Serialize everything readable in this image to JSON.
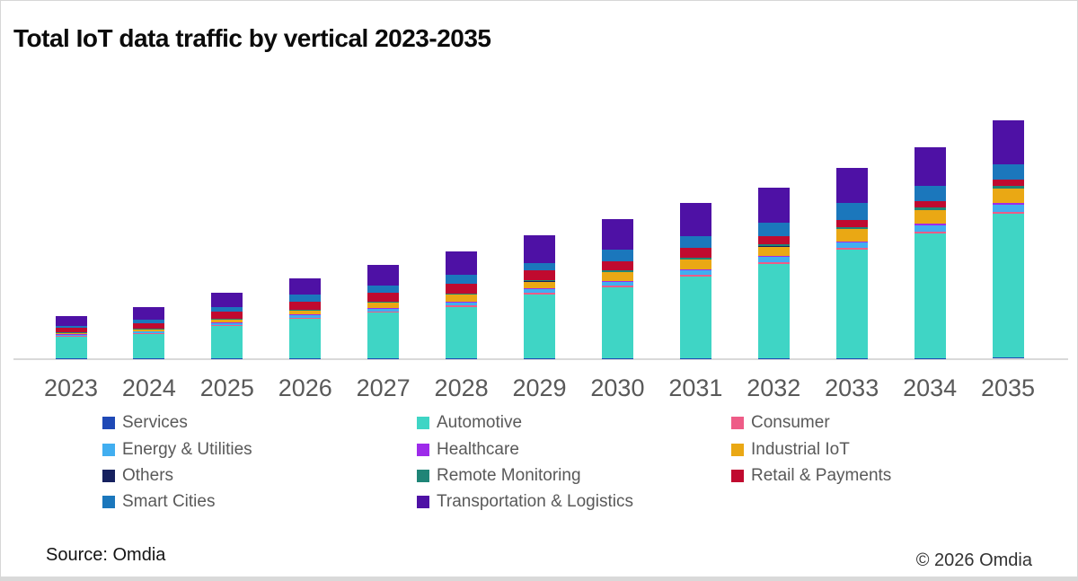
{
  "title": "Total IoT data traffic by vertical 2023-2035",
  "source": "Source: Omdia",
  "copyright": "© 2026 Omdia",
  "accent_colors": {
    "axis_line": "#d9d9d9",
    "tick_text": "#595959",
    "legend_text": "#595959",
    "title_text": "#0b0b0b"
  },
  "legend": {
    "columns": 3,
    "items": [
      {
        "label": "Services",
        "color": "#1f49b6"
      },
      {
        "label": "Automotive",
        "color": "#3fd5c5"
      },
      {
        "label": "Consumer",
        "color": "#ee5c87"
      },
      {
        "label": "Energy & Utilities",
        "color": "#41aef0"
      },
      {
        "label": "Healthcare",
        "color": "#9d2bea"
      },
      {
        "label": "Industrial IoT",
        "color": "#eaa814"
      },
      {
        "label": "Others",
        "color": "#16215f"
      },
      {
        "label": "Remote Monitoring",
        "color": "#1f8577"
      },
      {
        "label": "Retail & Payments",
        "color": "#c00a2f"
      },
      {
        "label": "Smart Cities",
        "color": "#1b77bc"
      },
      {
        "label": "Transportation & Logistics",
        "color": "#4e11a5"
      }
    ]
  },
  "chart_data": {
    "type": "bar",
    "stacked": true,
    "title": "Total IoT data traffic by vertical 2023-2035",
    "xlabel": "",
    "ylabel": "",
    "grid": false,
    "legend_position": "bottom",
    "value_axis_shown": false,
    "units": "relative traffic (no value axis labels shown; values estimated from segment heights, px)",
    "categories": [
      "2023",
      "2024",
      "2025",
      "2026",
      "2027",
      "2028",
      "2029",
      "2030",
      "2031",
      "2032",
      "2033",
      "2034",
      "2035"
    ],
    "stack_order_note": "series listed bottom-to-top of each bar",
    "series": [
      {
        "name": "Services",
        "color": "#1f49b6",
        "values": [
          0.4,
          0.4,
          0.4,
          0.4,
          0.4,
          0.4,
          0.5,
          0.5,
          0.5,
          0.5,
          0.5,
          0.5,
          0.6
        ]
      },
      {
        "name": "Automotive",
        "color": "#3fd5c5",
        "values": [
          24,
          27,
          36,
          44,
          51,
          57,
          71,
          79,
          91,
          105,
          121,
          139,
          160
        ]
      },
      {
        "name": "Consumer",
        "color": "#ee5c87",
        "values": [
          0.7,
          0.8,
          0.9,
          1.0,
          1.1,
          1.2,
          1.3,
          1.4,
          1.5,
          1.5,
          1.7,
          2.0,
          2.5
        ]
      },
      {
        "name": "Energy & Utilities",
        "color": "#41aef0",
        "values": [
          1.3,
          1.6,
          2.0,
          2.6,
          3.0,
          3.4,
          4.0,
          4.4,
          4.8,
          5.6,
          5.5,
          7.0,
          8.0
        ]
      },
      {
        "name": "Healthcare",
        "color": "#9d2bea",
        "values": [
          0.4,
          0.5,
          0.6,
          0.7,
          0.8,
          0.9,
          1.0,
          1.1,
          1.2,
          1.3,
          1.4,
          1.5,
          1.7
        ]
      },
      {
        "name": "Industrial IoT",
        "color": "#eaa814",
        "values": [
          1.3,
          1.7,
          3.3,
          4.3,
          5.3,
          8.0,
          7.7,
          9.5,
          11.0,
          10.5,
          14.0,
          15.0,
          16.0
        ]
      },
      {
        "name": "Others",
        "color": "#16215f",
        "values": [
          0.2,
          0.2,
          0.2,
          0.3,
          0.3,
          0.3,
          0.3,
          0.4,
          0.4,
          0.4,
          0.4,
          0.5,
          0.5
        ]
      },
      {
        "name": "Remote Monitoring",
        "color": "#1f8577",
        "values": [
          0.6,
          0.7,
          0.8,
          1.0,
          1.1,
          1.3,
          1.5,
          1.6,
          1.7,
          1.8,
          2.0,
          2.2,
          2.3
        ]
      },
      {
        "name": "Retail & Payments",
        "color": "#c00a2f",
        "values": [
          5.5,
          6.5,
          7.5,
          8.3,
          10.0,
          11.0,
          10.5,
          10.0,
          10.5,
          9.5,
          7.5,
          7.0,
          7.0
        ]
      },
      {
        "name": "Smart Cities",
        "color": "#1b77bc",
        "values": [
          2.0,
          4.0,
          5.0,
          8.3,
          8.3,
          9.5,
          8.5,
          13.0,
          13.5,
          14.5,
          19.0,
          17.0,
          17.0
        ]
      },
      {
        "name": "Transportation & Logistics",
        "color": "#4e11a5",
        "values": [
          11.0,
          13.5,
          16.5,
          18.3,
          22.3,
          26.5,
          31.0,
          34.0,
          36.5,
          39.0,
          38.7,
          43.0,
          49.0
        ]
      }
    ]
  }
}
